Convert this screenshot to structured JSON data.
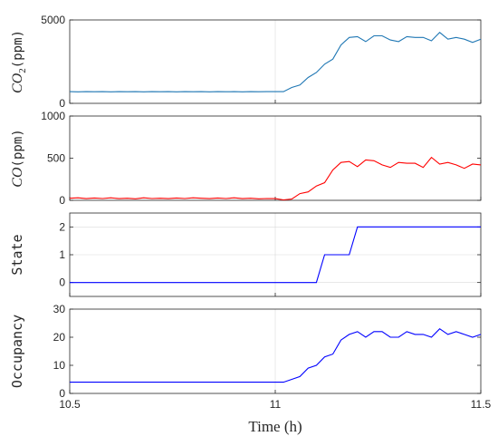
{
  "chart_data": [
    {
      "type": "line",
      "ylabel_math": "CO",
      "ylabel_sub": "2",
      "ylabel_unit": "(ppm)",
      "ylim": [
        0,
        5000
      ],
      "yticks": [
        0,
        5000
      ],
      "xlim": [
        10.5,
        11.5
      ],
      "color": "#1f77b4",
      "series": [
        {
          "x": [
            10.5,
            10.52,
            10.54,
            10.56,
            10.58,
            10.6,
            10.62,
            10.64,
            10.66,
            10.68,
            10.7,
            10.72,
            10.74,
            10.76,
            10.78,
            10.8,
            10.82,
            10.84,
            10.86,
            10.88,
            10.9,
            10.92,
            10.94,
            10.96,
            10.98,
            11.0,
            11.02,
            11.04,
            11.06,
            11.08,
            11.1,
            11.12,
            11.14,
            11.16,
            11.18,
            11.2,
            11.22,
            11.24,
            11.26,
            11.28,
            11.3,
            11.32,
            11.34,
            11.36,
            11.38,
            11.4,
            11.42,
            11.44,
            11.46,
            11.48,
            11.5
          ],
          "y": [
            700,
            690,
            700,
            695,
            700,
            690,
            700,
            695,
            700,
            690,
            700,
            695,
            700,
            690,
            700,
            695,
            700,
            690,
            700,
            695,
            700,
            690,
            700,
            695,
            700,
            700,
            700,
            950,
            1100,
            1550,
            1850,
            2350,
            2650,
            3500,
            3950,
            4000,
            3700,
            4050,
            4050,
            3800,
            3700,
            4000,
            3950,
            3950,
            3750,
            4250,
            3850,
            3950,
            3850,
            3650,
            3850
          ]
        }
      ]
    },
    {
      "type": "line",
      "ylabel_math": "CO",
      "ylabel_unit": "(ppm)",
      "ylim": [
        0,
        1000
      ],
      "yticks": [
        0,
        500,
        1000
      ],
      "xlim": [
        10.5,
        11.5
      ],
      "color": "#ff0000",
      "series": [
        {
          "x": [
            10.5,
            10.52,
            10.54,
            10.56,
            10.58,
            10.6,
            10.62,
            10.64,
            10.66,
            10.68,
            10.7,
            10.72,
            10.74,
            10.76,
            10.78,
            10.8,
            10.82,
            10.84,
            10.86,
            10.88,
            10.9,
            10.92,
            10.94,
            10.96,
            10.98,
            11.0,
            11.02,
            11.04,
            11.06,
            11.08,
            11.1,
            11.12,
            11.14,
            11.16,
            11.18,
            11.2,
            11.22,
            11.24,
            11.26,
            11.28,
            11.3,
            11.32,
            11.34,
            11.36,
            11.38,
            11.4,
            11.42,
            11.44,
            11.46,
            11.48,
            11.5
          ],
          "y": [
            25,
            30,
            20,
            28,
            22,
            30,
            20,
            25,
            18,
            30,
            22,
            25,
            20,
            28,
            22,
            30,
            25,
            20,
            28,
            22,
            30,
            20,
            25,
            18,
            22,
            20,
            5,
            15,
            80,
            100,
            170,
            210,
            360,
            450,
            460,
            400,
            480,
            470,
            420,
            390,
            450,
            440,
            440,
            390,
            510,
            430,
            450,
            420,
            380,
            430,
            420
          ]
        }
      ]
    },
    {
      "type": "line",
      "ylabel": "State",
      "ylim": [
        -0.5,
        2.5
      ],
      "yticks": [
        0,
        1,
        2
      ],
      "xlim": [
        10.5,
        11.5
      ],
      "color": "#0000ff",
      "series": [
        {
          "x": [
            10.5,
            11.1,
            11.12,
            11.18,
            11.2,
            11.5
          ],
          "y": [
            0,
            0,
            1,
            1,
            2,
            2
          ]
        }
      ]
    },
    {
      "type": "line",
      "ylabel": "Occupancy",
      "ylim": [
        0,
        30
      ],
      "yticks": [
        0,
        10,
        20,
        30
      ],
      "xlim": [
        10.5,
        11.5
      ],
      "xticks": [
        10.5,
        11,
        11.5
      ],
      "xlabel": "Time (h)",
      "color": "#0000ff",
      "series": [
        {
          "x": [
            10.5,
            10.6,
            10.7,
            10.8,
            10.9,
            11.0,
            11.02,
            11.04,
            11.06,
            11.08,
            11.1,
            11.12,
            11.14,
            11.16,
            11.18,
            11.2,
            11.22,
            11.24,
            11.26,
            11.28,
            11.3,
            11.32,
            11.34,
            11.36,
            11.38,
            11.4,
            11.42,
            11.44,
            11.46,
            11.48,
            11.5
          ],
          "y": [
            4,
            4,
            4,
            4,
            4,
            4,
            4,
            5,
            6,
            9,
            10,
            13,
            14,
            19,
            21,
            22,
            20,
            22,
            22,
            20,
            20,
            22,
            21,
            21,
            20,
            23,
            21,
            22,
            21,
            20,
            21
          ]
        }
      ]
    }
  ]
}
